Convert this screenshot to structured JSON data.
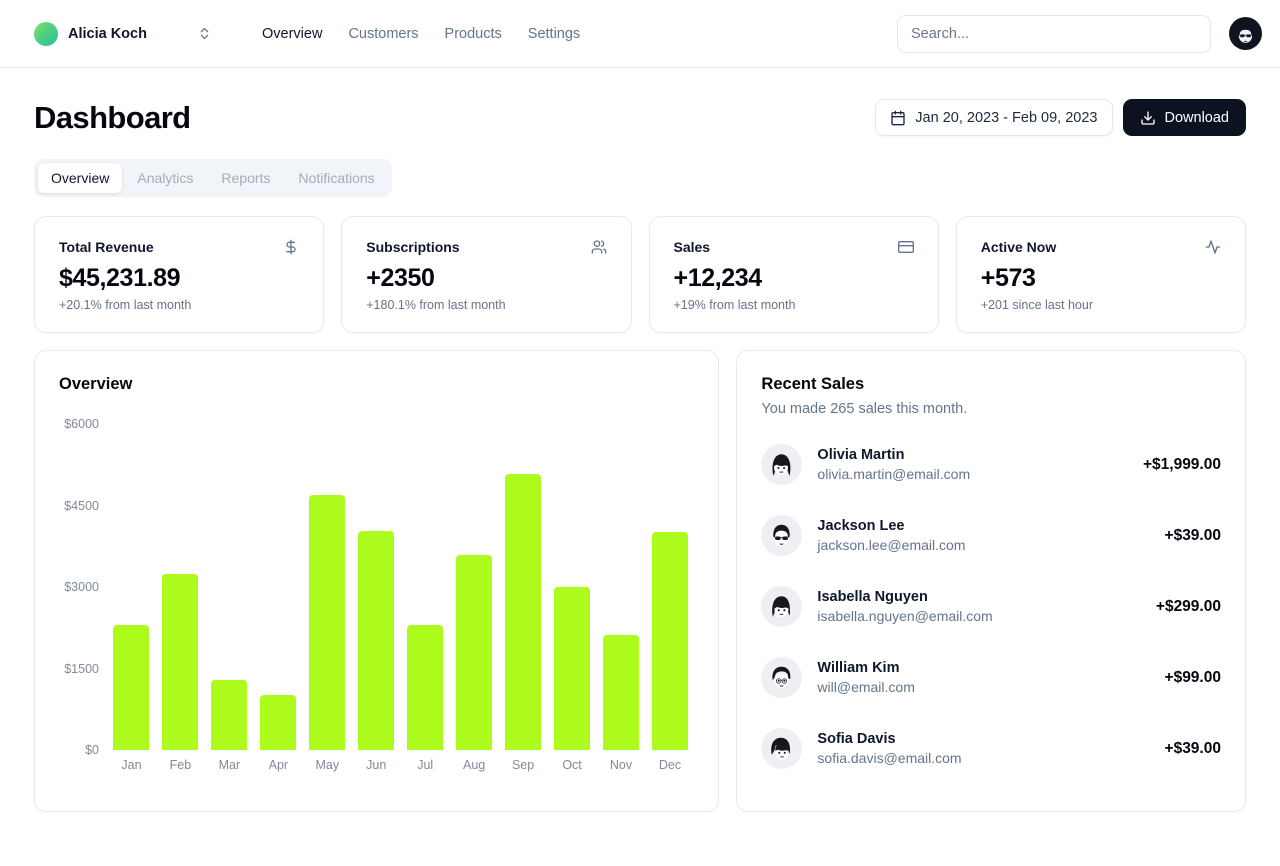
{
  "header": {
    "team_name": "Alicia Koch",
    "nav": {
      "overview": "Overview",
      "customers": "Customers",
      "products": "Products",
      "settings": "Settings"
    },
    "search_placeholder": "Search..."
  },
  "page": {
    "title": "Dashboard",
    "date_range": "Jan 20, 2023 - Feb 09, 2023",
    "download_label": "Download",
    "tabs": {
      "overview": "Overview",
      "analytics": "Analytics",
      "reports": "Reports",
      "notifications": "Notifications"
    }
  },
  "stats": [
    {
      "title": "Total Revenue",
      "icon": "dollar-sign-icon",
      "value": "$45,231.89",
      "change": "+20.1% from last month"
    },
    {
      "title": "Subscriptions",
      "icon": "users-icon",
      "value": "+2350",
      "change": "+180.1% from last month"
    },
    {
      "title": "Sales",
      "icon": "credit-card-icon",
      "value": "+12,234",
      "change": "+19% from last month"
    },
    {
      "title": "Active Now",
      "icon": "activity-icon",
      "value": "+573",
      "change": "+201 since last hour"
    }
  ],
  "chart_data": {
    "type": "bar",
    "title": "Overview",
    "categories": [
      "Jan",
      "Feb",
      "Mar",
      "Apr",
      "May",
      "Jun",
      "Jul",
      "Aug",
      "Sep",
      "Oct",
      "Nov",
      "Dec"
    ],
    "values": [
      2300,
      3240,
      1290,
      1015,
      4690,
      4030,
      2300,
      3590,
      5080,
      3000,
      2110,
      4015
    ],
    "xlabel": "",
    "ylabel": "",
    "ylim": [
      0,
      6000
    ],
    "yticks": [
      {
        "value": 6000,
        "label": "$6000"
      },
      {
        "value": 4500,
        "label": "$4500"
      },
      {
        "value": 3000,
        "label": "$3000"
      },
      {
        "value": 1500,
        "label": "$1500"
      },
      {
        "value": 0,
        "label": "$0"
      }
    ],
    "grid": false,
    "legend": false,
    "bar_color": "#adfa1d",
    "tick_color": "#888888"
  },
  "recent_sales": {
    "title": "Recent Sales",
    "subtitle": "You made 265 sales this month.",
    "items": [
      {
        "name": "Olivia Martin",
        "email": "olivia.martin@email.com",
        "amount": "+$1,999.00"
      },
      {
        "name": "Jackson Lee",
        "email": "jackson.lee@email.com",
        "amount": "+$39.00"
      },
      {
        "name": "Isabella Nguyen",
        "email": "isabella.nguyen@email.com",
        "amount": "+$299.00"
      },
      {
        "name": "William Kim",
        "email": "will@email.com",
        "amount": "+$99.00"
      },
      {
        "name": "Sofia Davis",
        "email": "sofia.davis@email.com",
        "amount": "+$39.00"
      }
    ]
  },
  "colors": {
    "accent_bar": "#adfa1d",
    "primary_dark": "#0c121f",
    "muted_text": "#64748b",
    "border": "#e6eaf0",
    "tab_bg": "#f1f4f8"
  }
}
